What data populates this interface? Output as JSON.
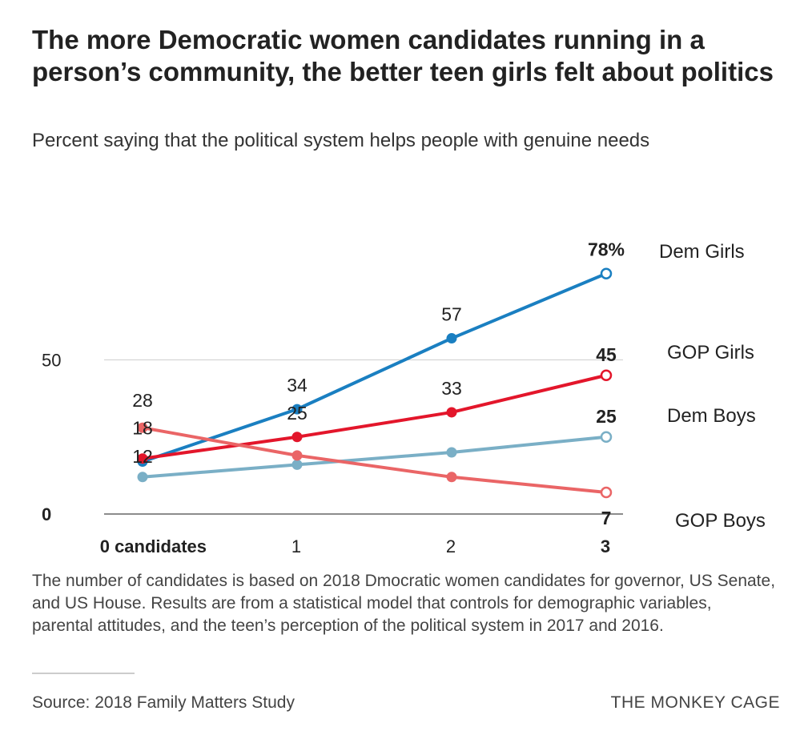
{
  "title": "The more Democratic women candidates running in a person’s community, the better teen girls felt about politics",
  "subtitle": "Percent saying that the political system helps people with genuine needs",
  "footnote": "The number of candidates is based on 2018 Dmocratic women candidates for governor, US Senate, and US House. Results are from a statistical model that controls for demographic variables, parental attitudes, and the teen’s perception of the political system in 2017 and 2016.",
  "source": "Source: 2018 Family Matters Study",
  "brand": "THE MONKEY CAGE",
  "chart_data": {
    "type": "line",
    "x": [
      0,
      1,
      2,
      3
    ],
    "x_tick_labels": [
      "0 candidates",
      "1",
      "2",
      "3"
    ],
    "y_ticks": [
      0,
      50
    ],
    "y_tick_labels": [
      "0",
      "50"
    ],
    "ylim": [
      0,
      50
    ],
    "grid": true,
    "legend": "right-end labels",
    "series": [
      {
        "name": "Dem Girls",
        "color": "#1a7fc1",
        "values": [
          17,
          34,
          57,
          78
        ],
        "point_labels": [
          "",
          "34",
          "57",
          "78%"
        ]
      },
      {
        "name": "GOP Girls",
        "color": "#e3162b",
        "values": [
          18,
          25,
          33,
          45
        ],
        "point_labels": [
          "18",
          "25",
          "33",
          "45"
        ]
      },
      {
        "name": "Dem Boys",
        "color": "#7aafc6",
        "values": [
          12,
          16,
          20,
          25
        ],
        "point_labels": [
          "12",
          "",
          "",
          "25"
        ]
      },
      {
        "name": "GOP Boys",
        "color": "#ea6566",
        "values": [
          28,
          19,
          12,
          7
        ],
        "point_labels": [
          "28",
          "",
          "",
          "7"
        ]
      }
    ]
  }
}
